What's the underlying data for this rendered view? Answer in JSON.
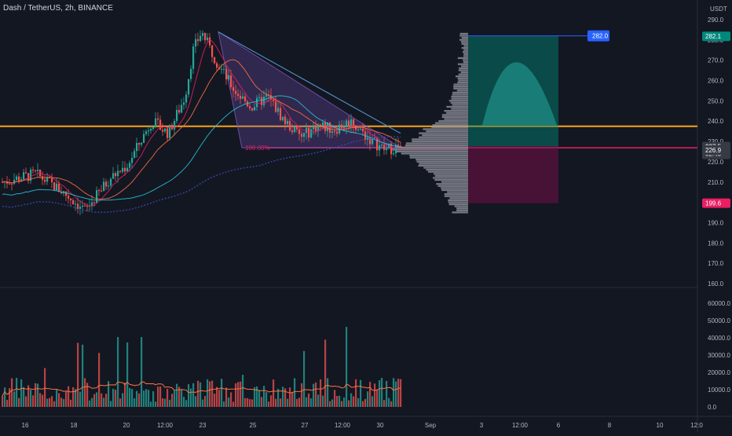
{
  "header": {
    "title": "Dash / TetherUS, 2h, BINANCE"
  },
  "axis": {
    "currency": "USDT",
    "price_ticks": [
      "290.0",
      "280.0",
      "270.0",
      "260.0",
      "250.0",
      "240.0",
      "230.0",
      "220.0",
      "210.0",
      "200.0",
      "190.0",
      "180.0",
      "170.0",
      "160.0"
    ],
    "volume_ticks": [
      "60000.0",
      "50000.0",
      "40000.0",
      "30000.0",
      "20000.0",
      "10000.0",
      "0.0"
    ],
    "time_ticks": [
      "16",
      "18",
      "20",
      "12:00",
      "23",
      "25",
      "27",
      "12:00",
      "30",
      "Sep",
      "3",
      "12:00",
      "6",
      "8",
      "10",
      "12:0"
    ]
  },
  "labels": {
    "target_label": "282.0",
    "target_tag": "282.1",
    "current_price": "227.5",
    "countdown": "02:45",
    "support_price": "226.9",
    "stop_price": "199.6",
    "fib_label": "100.00%"
  },
  "colors": {
    "up": "#26a69a",
    "down": "#ef5350",
    "orange_line": "#f7a21b",
    "pink_line": "#e91e63",
    "triangle": "#7e57c2",
    "profit": "#00897b",
    "loss": "#880e4f",
    "target_blue": "#2962ff"
  },
  "chart_data": {
    "type": "candlestick",
    "title": "Dash / TetherUS, 2h, BINANCE",
    "price_range": [
      158,
      293
    ],
    "volume_range": [
      0,
      65000
    ],
    "levels": {
      "resistance": 237.5,
      "support": 226.9,
      "target": 282.0,
      "stop": 199.6,
      "current": 227.5
    },
    "trend_points": [
      {
        "t": 0,
        "p": 210
      },
      {
        "t": 8,
        "p": 214
      },
      {
        "t": 14,
        "p": 206
      },
      {
        "t": 20,
        "p": 196
      },
      {
        "t": 26,
        "p": 212
      },
      {
        "t": 30,
        "p": 218
      },
      {
        "t": 36,
        "p": 240
      },
      {
        "t": 40,
        "p": 234
      },
      {
        "t": 44,
        "p": 252
      },
      {
        "t": 46,
        "p": 275
      },
      {
        "t": 48,
        "p": 284
      },
      {
        "t": 52,
        "p": 268
      },
      {
        "t": 56,
        "p": 255
      },
      {
        "t": 60,
        "p": 247
      },
      {
        "t": 64,
        "p": 252
      },
      {
        "t": 68,
        "p": 240
      },
      {
        "t": 72,
        "p": 232
      },
      {
        "t": 76,
        "p": 238
      },
      {
        "t": 80,
        "p": 236
      },
      {
        "t": 84,
        "p": 240
      },
      {
        "t": 88,
        "p": 232
      },
      {
        "t": 92,
        "p": 226
      },
      {
        "t": 96,
        "p": 227.5
      }
    ]
  }
}
